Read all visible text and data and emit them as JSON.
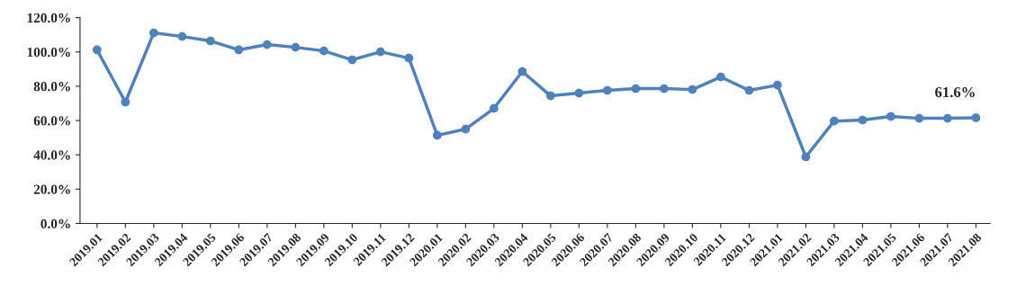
{
  "chart_data": {
    "type": "line",
    "categories": [
      "2019.01",
      "2019.02",
      "2019.03",
      "2019.04",
      "2019.05",
      "2019.06",
      "2019.07",
      "2019.08",
      "2019.09",
      "2019.10",
      "2019.11",
      "2019.12",
      "2020.01",
      "2020.02",
      "2020.03",
      "2020.04",
      "2020.05",
      "2020.06",
      "2020.07",
      "2020.08",
      "2020.09",
      "2020.10",
      "2020.11",
      "2020.12",
      "2021.01",
      "2021.02",
      "2021.03",
      "2021.04",
      "2021.05",
      "2021.06",
      "2021.07",
      "2021.08"
    ],
    "series": [
      {
        "color": "#4f81bd",
        "values": [
          101.2,
          70.8,
          111.1,
          109.0,
          106.4,
          101.2,
          104.3,
          102.7,
          100.6,
          95.4,
          100.1,
          96.4,
          51.4,
          55.0,
          67.1,
          88.6,
          74.4,
          76.0,
          77.6,
          78.6,
          78.6,
          78.1,
          85.4,
          77.6,
          80.7,
          38.8,
          59.7,
          60.3,
          62.4,
          61.3,
          61.3,
          61.6
        ],
        "value_labels": [
          null,
          null,
          null,
          null,
          null,
          null,
          null,
          null,
          null,
          null,
          null,
          null,
          null,
          null,
          null,
          null,
          null,
          null,
          null,
          null,
          null,
          null,
          null,
          null,
          null,
          null,
          null,
          null,
          null,
          null,
          null,
          "61.6%"
        ]
      }
    ],
    "ylim": [
      0,
      120
    ],
    "yticks": [
      {
        "value": 0,
        "label": "0.0%"
      },
      {
        "value": 20,
        "label": "20.0%"
      },
      {
        "value": 40,
        "label": "40.0%"
      },
      {
        "value": 60,
        "label": "60.0%"
      },
      {
        "value": 80,
        "label": "80.0%"
      },
      {
        "value": 100,
        "label": "100.0%"
      },
      {
        "value": 120,
        "label": "120.0%"
      }
    ],
    "marker": "circle",
    "line_style": "solid",
    "grid": false
  }
}
